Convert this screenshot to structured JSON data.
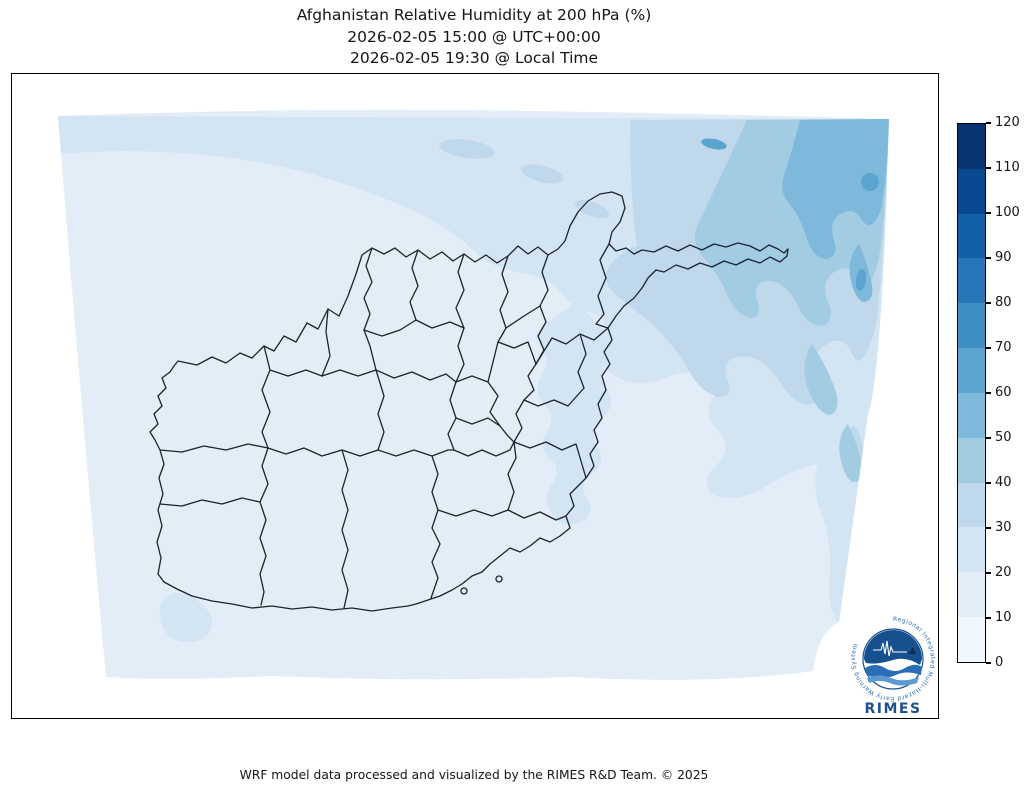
{
  "title": {
    "line1": "Afghanistan Relative Humidity at 200 hPa (%)",
    "line2": "2026-02-05 15:00 @ UTC+00:00",
    "line3": "2026-02-05 19:30 @ Local Time"
  },
  "footer": "WRF model data processed and visualized by the RIMES R&D Team. © 2025",
  "logo": {
    "text": "RIMES",
    "ring_text": "Regional Integrated Multi-Hazard Early Warning System"
  },
  "chart_data": {
    "type": "heatmap",
    "title": "Afghanistan Relative Humidity at 200 hPa (%)",
    "variable": "Relative Humidity",
    "pressure_level": "200 hPa",
    "units": "%",
    "region": "Afghanistan",
    "valid_time_utc": "2026-02-05 15:00 @ UTC+00:00",
    "valid_time_local": "2026-02-05 19:30 @ Local Time",
    "model": "WRF",
    "legend_position": "right",
    "grid": false,
    "colorbar": {
      "min": 0,
      "max": 120,
      "step": 10,
      "ticks": [
        0,
        10,
        20,
        30,
        40,
        50,
        60,
        70,
        80,
        90,
        100,
        110,
        120
      ],
      "colors": [
        "#eff6fc",
        "#e2edf8",
        "#d3e4f3",
        "#bfd8ec",
        "#a2cce2",
        "#7eb8da",
        "#5ca4d0",
        "#3f8fc4",
        "#2777b8",
        "#1360a7",
        "#08488f",
        "#083572"
      ]
    },
    "observed_pattern": "Relative humidity is mostly 10-30% over Afghanistan; values increase to 30-70% in streaky bands toward the far northeast (Wakhan corridor / Pamir corner of the domain); lowest values 10-20% over the south and west."
  }
}
